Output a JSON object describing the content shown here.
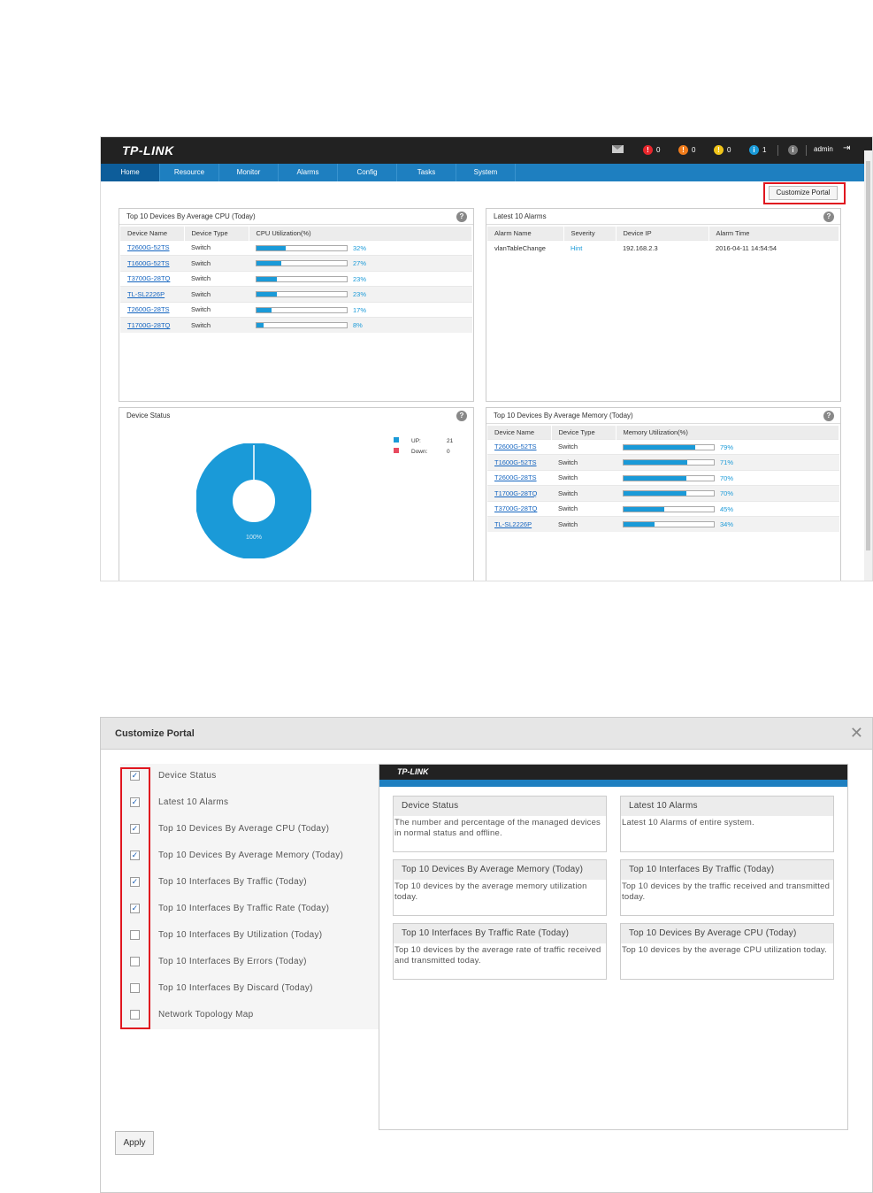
{
  "portal": {
    "logo": "TP-LINK",
    "counts": {
      "critical": "0",
      "major": "0",
      "minor": "0",
      "info": "1"
    },
    "info_icon": "i",
    "user": "admin",
    "nav": [
      "Home",
      "Resource",
      "Monitor",
      "Alarms",
      "Config",
      "Tasks",
      "System"
    ],
    "customize_button": "Customize Portal",
    "cpu_panel": {
      "title": "Top 10 Devices By Average CPU (Today)",
      "headers": [
        "Device Name",
        "Device Type",
        "CPU Utilization(%)"
      ],
      "rows": [
        {
          "name": "T2600G-52TS",
          "type": "Switch",
          "value": 32,
          "label": "32%"
        },
        {
          "name": "T1600G-52TS",
          "type": "Switch",
          "value": 27,
          "label": "27%"
        },
        {
          "name": "T3700G-28TQ",
          "type": "Switch",
          "value": 23,
          "label": "23%"
        },
        {
          "name": "TL-SL2226P",
          "type": "Switch",
          "value": 23,
          "label": "23%"
        },
        {
          "name": "T2600G-28TS",
          "type": "Switch",
          "value": 17,
          "label": "17%"
        },
        {
          "name": "T1700G-28TQ",
          "type": "Switch",
          "value": 8,
          "label": "8%"
        }
      ]
    },
    "alarms_panel": {
      "title": "Latest 10 Alarms",
      "headers": [
        "Alarm Name",
        "Severity",
        "Device IP",
        "Alarm Time"
      ],
      "rows": [
        {
          "name": "vlanTableChange",
          "severity": "Hint",
          "ip": "192.168.2.3",
          "time": "2016-04-11 14:54:54"
        }
      ]
    },
    "status_panel": {
      "title": "Device Status",
      "legend": [
        {
          "label": "UP:",
          "count": "21",
          "color": "#1a9ad8"
        },
        {
          "label": "Down:",
          "count": "0",
          "color": "#e84a5f"
        }
      ],
      "donut_label": "100%",
      "up_fraction": 1.0
    },
    "memory_panel": {
      "title": "Top 10 Devices By Average Memory (Today)",
      "headers": [
        "Device Name",
        "Device Type",
        "Memory Utilization(%)"
      ],
      "rows": [
        {
          "name": "T2600G-52TS",
          "type": "Switch",
          "value": 79,
          "label": "79%"
        },
        {
          "name": "T1600G-52TS",
          "type": "Switch",
          "value": 71,
          "label": "71%"
        },
        {
          "name": "T2600G-28TS",
          "type": "Switch",
          "value": 70,
          "label": "70%"
        },
        {
          "name": "T1700G-28TQ",
          "type": "Switch",
          "value": 70,
          "label": "70%"
        },
        {
          "name": "T3700G-28TQ",
          "type": "Switch",
          "value": 45,
          "label": "45%"
        },
        {
          "name": "TL-SL2226P",
          "type": "Switch",
          "value": 34,
          "label": "34%"
        }
      ]
    }
  },
  "dialog": {
    "title": "Customize Portal",
    "options": [
      {
        "label": "Device Status",
        "checked": true
      },
      {
        "label": "Latest 10 Alarms",
        "checked": true
      },
      {
        "label": "Top 10 Devices By Average CPU (Today)",
        "checked": true
      },
      {
        "label": "Top 10 Devices By Average Memory (Today)",
        "checked": true
      },
      {
        "label": "Top 10 Interfaces By Traffic (Today)",
        "checked": true
      },
      {
        "label": "Top 10 Interfaces By Traffic Rate (Today)",
        "checked": true
      },
      {
        "label": "Top 10 Interfaces By Utilization (Today)",
        "checked": false
      },
      {
        "label": "Top 10 Interfaces By Errors (Today)",
        "checked": false
      },
      {
        "label": "Top 10 Interfaces By Discard (Today)",
        "checked": false
      },
      {
        "label": "Network Topology Map",
        "checked": false
      }
    ],
    "preview_logo": "TP-LINK",
    "cards": [
      {
        "title": "Device Status",
        "desc": "The number and percentage of the managed devices in normal status and offline."
      },
      {
        "title": "Latest 10 Alarms",
        "desc": "Latest 10 Alarms of entire system."
      },
      {
        "title": "Top 10 Devices By Average Memory (Today)",
        "desc": "Top 10 devices by the average memory utilization today."
      },
      {
        "title": "Top 10 Interfaces By Traffic (Today)",
        "desc": "Top 10 devices by the traffic received and transmitted today."
      },
      {
        "title": "Top 10 Interfaces By Traffic Rate (Today)",
        "desc": "Top 10 devices by the average rate of traffic received and transmitted today."
      },
      {
        "title": "Top 10 Devices By Average CPU (Today)",
        "desc": "Top 10 devices by the average CPU utilization today."
      }
    ],
    "apply_button": "Apply",
    "close_glyph": "✕"
  },
  "colors": {
    "accent": "#1e7fc0",
    "bar": "#1a9ad8",
    "highlight": "#e0161f",
    "critical": "#e8262c",
    "major": "#f07c1c",
    "minor": "#f0c419",
    "info": "#1a9ad8"
  }
}
